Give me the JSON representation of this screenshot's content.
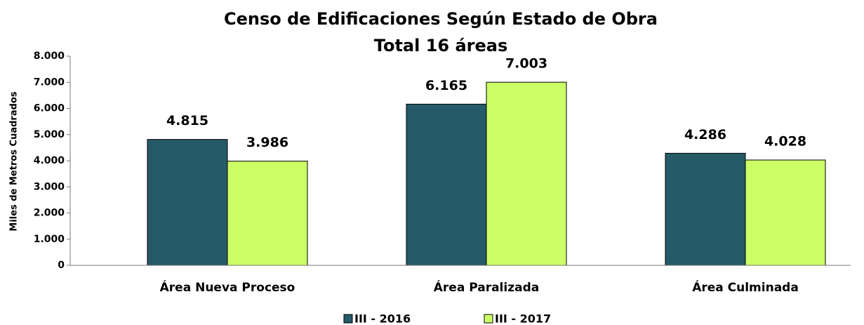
{
  "chart_data": {
    "type": "bar",
    "title": "Censo de Edificaciones Según Estado de Obra",
    "subtitle": "Total 16 áreas",
    "y_label": "Miles de Metros Cuadrados",
    "categories": [
      "Área Nueva Proceso",
      "Área Paralizada",
      "Área Culminada"
    ],
    "series": [
      {
        "name": "III - 2016",
        "color": "#255a69",
        "values": [
          4815,
          6165,
          4286
        ],
        "value_labels": [
          "4.815",
          "6.165",
          "4.286"
        ]
      },
      {
        "name": "III - 2017",
        "color": "#ccff66",
        "values": [
          3986,
          7003,
          4028
        ],
        "value_labels": [
          "3.986",
          "7.003",
          "4.028"
        ]
      }
    ],
    "ylim": [
      0,
      8000
    ],
    "yticks": [
      0,
      {
        "value": 1000,
        "label": "1.000"
      },
      {
        "value": 2000,
        "label": "2.000"
      },
      {
        "value": 3000,
        "label": "3.000"
      },
      {
        "value": 4000,
        "label": "4.000"
      },
      {
        "value": 5000,
        "label": "5.000"
      },
      {
        "value": 6000,
        "label": "6.000"
      },
      {
        "value": 7000,
        "label": "7.000"
      },
      {
        "value": 8000,
        "label": "8.000"
      }
    ],
    "grid": false,
    "legend": "bottom"
  }
}
